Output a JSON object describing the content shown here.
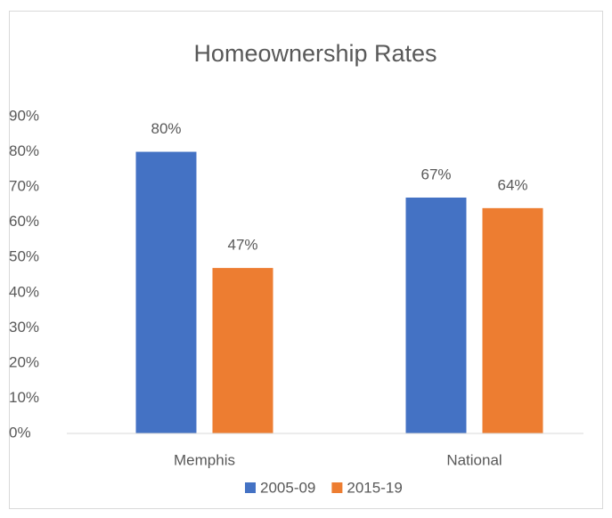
{
  "chart_data": {
    "type": "bar",
    "title": "Homeownership Rates",
    "categories": [
      "Memphis",
      "National"
    ],
    "series": [
      {
        "name": "2005-09",
        "color": "#4472c4",
        "values": [
          80,
          67
        ],
        "value_labels": [
          "80%",
          "67%"
        ]
      },
      {
        "name": "2015-19",
        "color": "#ed7d31",
        "values": [
          47,
          64
        ],
        "value_labels": [
          "47%",
          "64%"
        ]
      }
    ],
    "ylim": [
      0,
      90
    ],
    "yticks": [
      {
        "value": 0,
        "label": "0%"
      },
      {
        "value": 10,
        "label": "10%"
      },
      {
        "value": 20,
        "label": "20%"
      },
      {
        "value": 30,
        "label": "30%"
      },
      {
        "value": 40,
        "label": "40%"
      },
      {
        "value": 50,
        "label": "50%"
      },
      {
        "value": 60,
        "label": "60%"
      },
      {
        "value": 70,
        "label": "70%"
      },
      {
        "value": 80,
        "label": "80%"
      },
      {
        "value": 90,
        "label": "90%"
      }
    ],
    "grid": false,
    "legend": "bottom"
  }
}
